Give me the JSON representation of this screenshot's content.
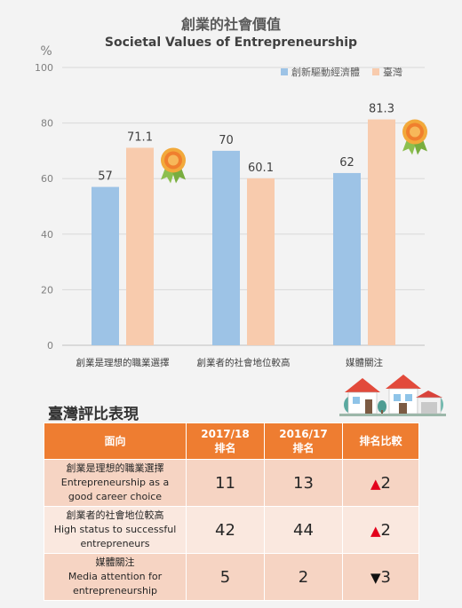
{
  "chart_data": {
    "type": "bar",
    "title": "創業的社會價值",
    "subtitle": "Societal Values of Entrepreneurship",
    "ylabel": "%",
    "ylim": [
      0,
      100
    ],
    "yticks": [
      0,
      20,
      40,
      60,
      80,
      100
    ],
    "grid": true,
    "legend_position": "top-right",
    "categories": [
      "創業是理想的職業選擇",
      "創業者的社會地位較高",
      "媒體關注"
    ],
    "series": [
      {
        "name": "創新驅動經濟體",
        "color": "#9dc3e6",
        "values": [
          57,
          70,
          62
        ]
      },
      {
        "name": "臺灣",
        "color": "#f8cbad",
        "values": [
          71.1,
          60.1,
          81.3
        ]
      }
    ],
    "value_labels": [
      "57",
      "70",
      "62",
      "71.1",
      "60.1",
      "81.3"
    ]
  },
  "colors": {
    "header": "#ee7d31",
    "row_odd": "#f6d4c3",
    "row_even": "#fae8df",
    "up": "#e3001b"
  },
  "icons": {
    "badge": "award-ribbon-icon",
    "houses": "houses-illustration"
  },
  "ranking": {
    "title": "臺灣評比表現",
    "headers": {
      "item": "面向",
      "y2017_line1": "2017/18",
      "y2017_line2": "排名",
      "y2016_line1": "2016/17",
      "y2016_line2": "排名",
      "change": "排名比較"
    },
    "rows": [
      {
        "zh": "創業是理想的職業選擇",
        "en1": "Entrepreneurship as a",
        "en2": "good career choice",
        "rank_2017": "11",
        "rank_2016": "13",
        "arrow": "▲",
        "change": "2"
      },
      {
        "zh": "創業者的社會地位較高",
        "en1": "High status to successful",
        "en2": "entrepreneurs",
        "rank_2017": "42",
        "rank_2016": "44",
        "arrow": "▲",
        "change": "2"
      },
      {
        "zh": "媒體關注",
        "en1": "Media attention for",
        "en2": "entrepreneurship",
        "rank_2017": "5",
        "rank_2016": "2",
        "arrow": "▼",
        "change": "3"
      }
    ]
  }
}
